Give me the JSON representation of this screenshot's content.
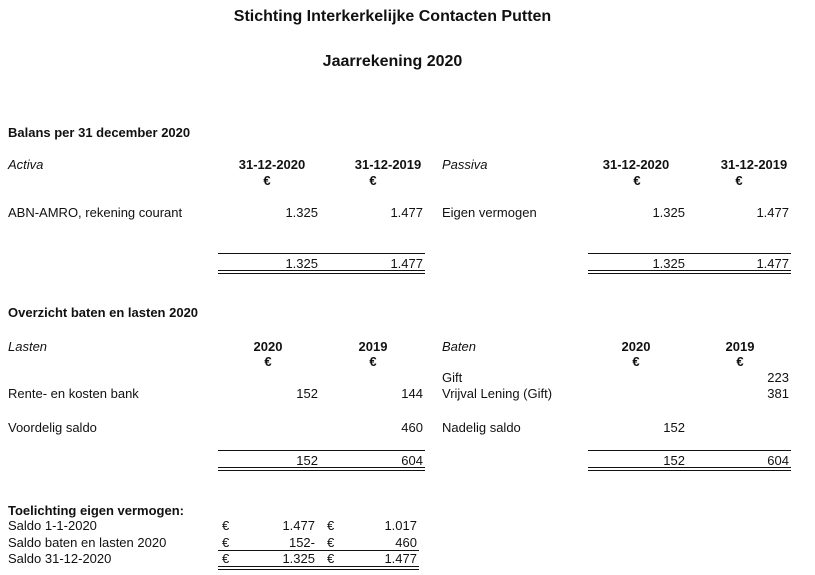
{
  "header": {
    "org": "Stichting Interkerkelijke Contacten Putten",
    "title": "Jaarrekening 2020"
  },
  "balans": {
    "heading": "Balans per 31 december 2020",
    "activa": {
      "label": "Activa",
      "col1": "31-12-2020",
      "col2": "31-12-2019",
      "currency": "€",
      "rows": [
        {
          "label": "ABN-AMRO, rekening courant",
          "v1": "1.325",
          "v2": "1.477"
        }
      ],
      "total1": "1.325",
      "total2": "1.477"
    },
    "passiva": {
      "label": "Passiva",
      "col1": "31-12-2020",
      "col2": "31-12-2019",
      "currency": "€",
      "rows": [
        {
          "label": "Eigen vermogen",
          "v1": "1.325",
          "v2": "1.477"
        }
      ],
      "total1": "1.325",
      "total2": "1.477"
    }
  },
  "overzicht": {
    "heading": "Overzicht baten en lasten 2020",
    "lasten": {
      "label": "Lasten",
      "col1": "2020",
      "col2": "2019",
      "currency": "€",
      "rows": [
        {
          "label": "Rente- en kosten bank",
          "v1": "152",
          "v2": "144"
        },
        {
          "label": "Voordelig saldo",
          "v1": "",
          "v2": "460"
        }
      ],
      "total1": "152",
      "total2": "604"
    },
    "baten": {
      "label": "Baten",
      "col1": "2020",
      "col2": "2019",
      "currency": "€",
      "rows": [
        {
          "label": "Gift",
          "v1": "",
          "v2": "223"
        },
        {
          "label": "Vrijval Lening (Gift)",
          "v1": "",
          "v2": "381"
        },
        {
          "label": "Nadelig saldo",
          "v1": "152",
          "v2": ""
        }
      ],
      "total1": "152",
      "total2": "604"
    }
  },
  "toelichting": {
    "heading": "Toelichting eigen vermogen:",
    "currency": "€",
    "rows": [
      {
        "label": "Saldo 1-1-2020",
        "v1": "1.477",
        "v2": "1.017"
      },
      {
        "label": "Saldo baten en lasten 2020",
        "v1": "152-",
        "v2": "460"
      },
      {
        "label": "Saldo 31-12-2020",
        "v1": "1.325",
        "v2": "1.477"
      }
    ]
  }
}
